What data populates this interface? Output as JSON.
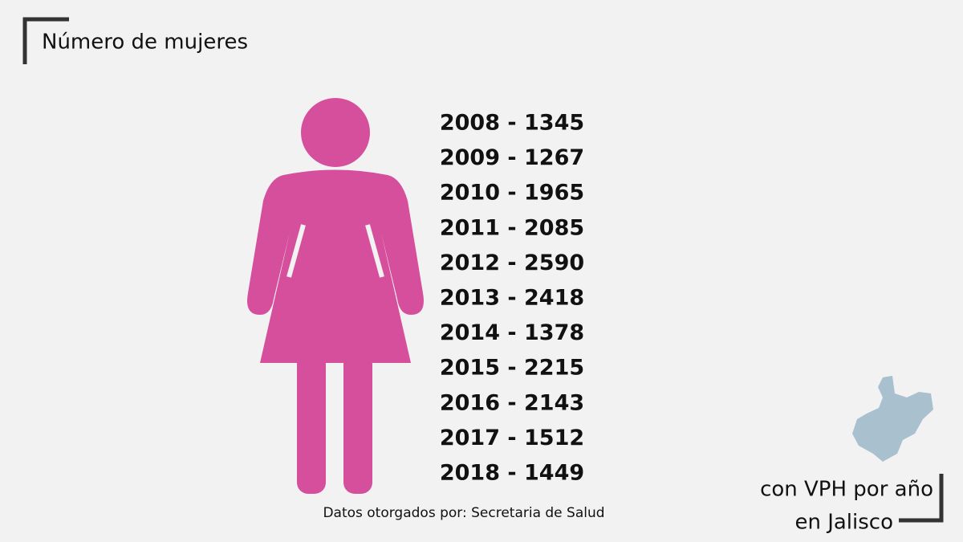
{
  "title": "Número de mujeres",
  "entries": [
    "2008 - 1345",
    "2009 - 1267",
    "2010 - 1965",
    "2011 - 2085",
    "2012 - 2590",
    "2013 - 2418",
    "2014 - 1378",
    "2015 - 2215",
    "2016 - 2143",
    "2017 - 1512",
    "2018 - 1449"
  ],
  "source": "Datos otorgados por: Secretaria de Salud",
  "subtitle": [
    "con VPH por año",
    "en Jalisco"
  ]
}
